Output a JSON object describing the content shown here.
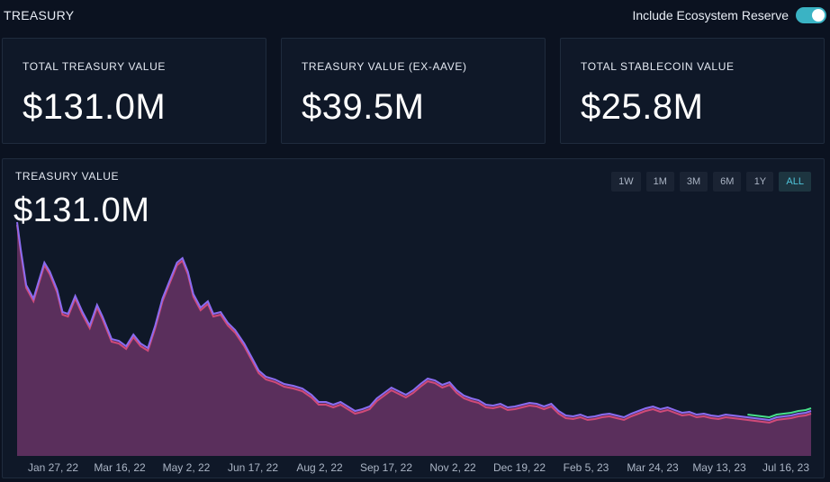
{
  "header": {
    "title": "TREASURY",
    "toggle_label": "Include Ecosystem Reserve",
    "toggle_on": true
  },
  "cards": [
    {
      "label": "TOTAL TREASURY VALUE",
      "value": "$131.0M"
    },
    {
      "label": "TREASURY VALUE (EX-AAVE)",
      "value": "$39.5M"
    },
    {
      "label": "TOTAL STABLECOIN VALUE",
      "value": "$25.8M"
    }
  ],
  "chart": {
    "label": "TREASURY VALUE",
    "value": "$131.0M",
    "ranges": [
      "1W",
      "1M",
      "3M",
      "6M",
      "1Y",
      "ALL"
    ],
    "active_range": "ALL"
  },
  "colors": {
    "background": "#0b1220",
    "card": "#0f1828",
    "accent": "#3ab3c4",
    "area_fill": "#5a2f5c",
    "line_top": "#8a6cf0",
    "line_bottom": "#d04a78",
    "line_green": "#48e08a"
  },
  "chart_data": {
    "type": "area",
    "x": [
      "Jan 27, 22",
      "Mar 16, 22",
      "May 2, 22",
      "Jun 17, 22",
      "Aug 2, 22",
      "Sep 17, 22",
      "Nov 2, 22",
      "Dec 19, 22",
      "Feb 5, 23",
      "Mar 24, 23",
      "May 13, 23",
      "Jul 16, 23"
    ],
    "ylim": [
      0,
      270
    ],
    "series": [
      {
        "values": [
          [
            0,
            260
          ],
          [
            2,
            230
          ],
          [
            5,
            190
          ],
          [
            9,
            175
          ],
          [
            12,
            195
          ],
          [
            15,
            215
          ],
          [
            18,
            205
          ],
          [
            22,
            185
          ],
          [
            25,
            160
          ],
          [
            28,
            158
          ],
          [
            32,
            178
          ],
          [
            36,
            160
          ],
          [
            40,
            145
          ],
          [
            44,
            168
          ],
          [
            47,
            155
          ],
          [
            52,
            130
          ],
          [
            56,
            128
          ],
          [
            60,
            122
          ],
          [
            64,
            135
          ],
          [
            68,
            125
          ],
          [
            72,
            120
          ],
          [
            76,
            145
          ],
          [
            80,
            175
          ],
          [
            84,
            195
          ],
          [
            88,
            215
          ],
          [
            91,
            220
          ],
          [
            94,
            205
          ],
          [
            97,
            180
          ],
          [
            101,
            165
          ],
          [
            105,
            172
          ],
          [
            108,
            158
          ],
          [
            112,
            160
          ],
          [
            116,
            148
          ],
          [
            120,
            140
          ],
          [
            125,
            125
          ],
          [
            129,
            110
          ],
          [
            133,
            95
          ],
          [
            137,
            88
          ],
          [
            142,
            85
          ],
          [
            147,
            80
          ],
          [
            152,
            78
          ],
          [
            157,
            75
          ],
          [
            162,
            68
          ],
          [
            166,
            60
          ],
          [
            170,
            60
          ],
          [
            174,
            57
          ],
          [
            178,
            60
          ],
          [
            182,
            55
          ],
          [
            186,
            50
          ],
          [
            190,
            52
          ],
          [
            194,
            55
          ],
          [
            198,
            64
          ],
          [
            202,
            70
          ],
          [
            206,
            76
          ],
          [
            210,
            72
          ],
          [
            214,
            68
          ],
          [
            218,
            73
          ],
          [
            222,
            80
          ],
          [
            226,
            86
          ],
          [
            230,
            84
          ],
          [
            234,
            79
          ],
          [
            238,
            82
          ],
          [
            242,
            73
          ],
          [
            246,
            67
          ],
          [
            250,
            64
          ],
          [
            254,
            62
          ],
          [
            258,
            57
          ],
          [
            262,
            56
          ],
          [
            266,
            58
          ],
          [
            270,
            54
          ],
          [
            274,
            55
          ],
          [
            278,
            57
          ],
          [
            282,
            59
          ],
          [
            286,
            58
          ],
          [
            290,
            55
          ],
          [
            294,
            58
          ],
          [
            298,
            50
          ],
          [
            302,
            45
          ],
          [
            306,
            44
          ],
          [
            310,
            46
          ],
          [
            314,
            43
          ],
          [
            318,
            44
          ],
          [
            322,
            46
          ],
          [
            326,
            47
          ],
          [
            330,
            45
          ],
          [
            334,
            43
          ],
          [
            338,
            47
          ],
          [
            342,
            50
          ],
          [
            346,
            53
          ],
          [
            350,
            55
          ],
          [
            354,
            52
          ],
          [
            358,
            54
          ],
          [
            362,
            51
          ],
          [
            366,
            48
          ],
          [
            370,
            49
          ],
          [
            374,
            46
          ],
          [
            378,
            47
          ],
          [
            382,
            45
          ],
          [
            386,
            44
          ],
          [
            390,
            46
          ],
          [
            394,
            45
          ],
          [
            398,
            44
          ],
          [
            402,
            43
          ],
          [
            406,
            42
          ],
          [
            410,
            41
          ],
          [
            414,
            40
          ],
          [
            418,
            43
          ],
          [
            422,
            44
          ],
          [
            426,
            45
          ],
          [
            430,
            47
          ],
          [
            434,
            48
          ],
          [
            437,
            50
          ]
        ]
      }
    ]
  }
}
